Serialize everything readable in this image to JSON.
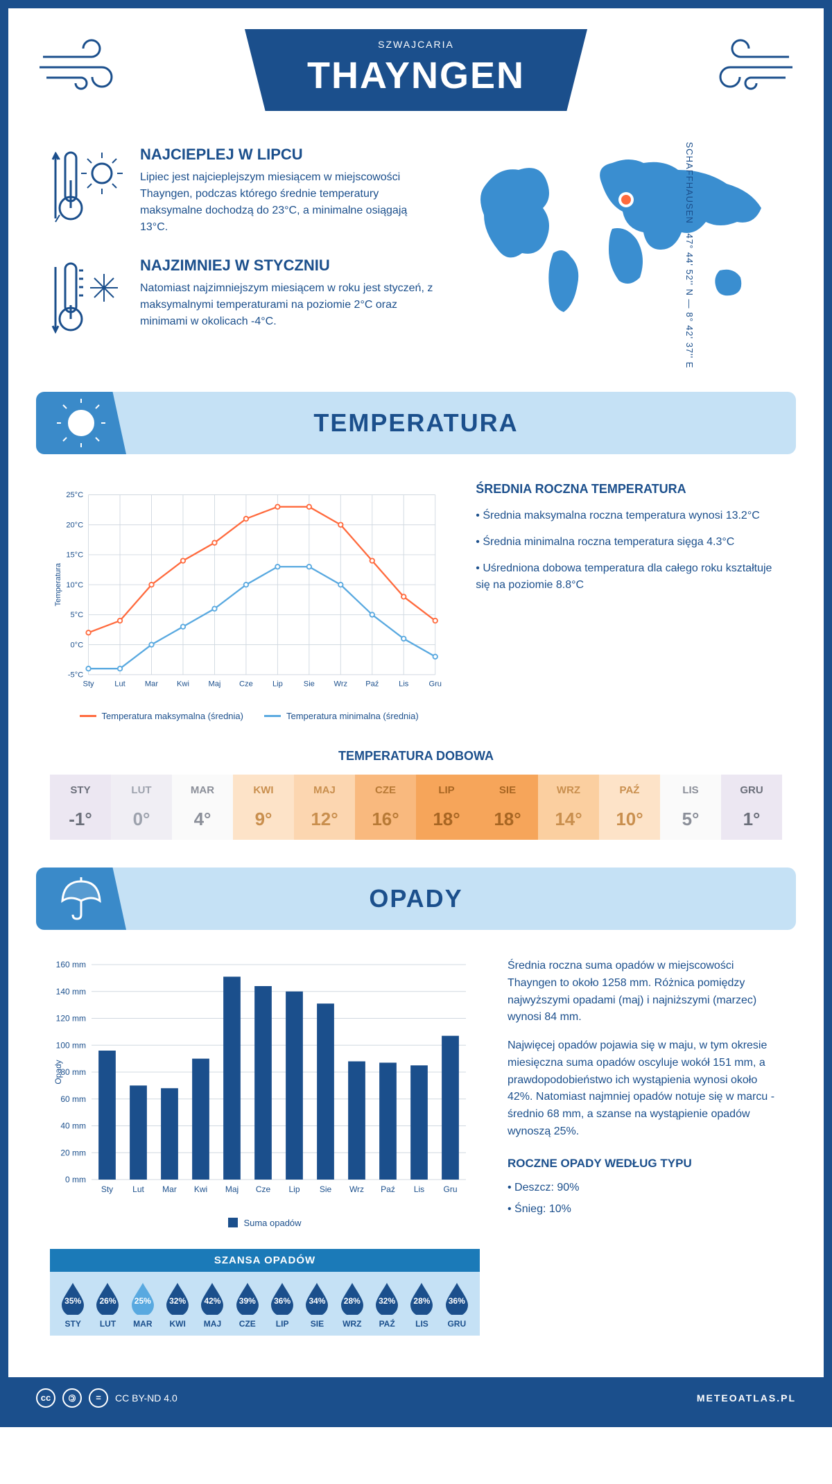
{
  "header": {
    "title": "THAYNGEN",
    "subtitle": "SZWAJCARIA"
  },
  "coords": {
    "line1": "SCHAFFHAUSEN",
    "line2": "47° 44' 52'' N — 8° 42' 37'' E"
  },
  "intro": {
    "hot": {
      "title": "NAJCIEPLEJ W LIPCU",
      "text": "Lipiec jest najcieplejszym miesiącem w miejscowości Thayngen, podczas którego średnie temperatury maksymalne dochodzą do 23°C, a minimalne osiągają 13°C."
    },
    "cold": {
      "title": "NAJZIMNIEJ W STYCZNIU",
      "text": "Natomiast najzimniejszym miesiącem w roku jest styczeń, z maksymalnymi temperaturami na poziomie 2°C oraz minimami w okolicach -4°C."
    }
  },
  "map": {
    "marker_color": "#ff6a3d",
    "land_color": "#3a8ed0"
  },
  "temperature": {
    "section_title": "TEMPERATURA",
    "months": [
      "Sty",
      "Lut",
      "Mar",
      "Kwi",
      "Maj",
      "Cze",
      "Lip",
      "Sie",
      "Wrz",
      "Paź",
      "Lis",
      "Gru"
    ],
    "max_series": [
      2,
      4,
      10,
      14,
      17,
      21,
      23,
      23,
      20,
      14,
      8,
      4
    ],
    "min_series": [
      -4,
      -4,
      0,
      3,
      6,
      10,
      13,
      13,
      10,
      5,
      1,
      -2
    ],
    "max_color": "#ff6a3d",
    "min_color": "#59a9e0",
    "ylabel": "Temperatura",
    "ylim": [
      -5,
      25
    ],
    "ytick_step": 5,
    "ytick_suffix": "°C",
    "grid_color": "#d0d8e0",
    "legend_max": "Temperatura maksymalna (średnia)",
    "legend_min": "Temperatura minimalna (średnia)",
    "info_title": "ŚREDNIA ROCZNA TEMPERATURA",
    "info_items": [
      "• Średnia maksymalna roczna temperatura wynosi 13.2°C",
      "• Średnia minimalna roczna temperatura sięga 4.3°C",
      "• Uśredniona dobowa temperatura dla całego roku kształtuje się na poziomie 8.8°C"
    ],
    "daily_title": "TEMPERATURA DOBOWA",
    "daily_months": [
      "STY",
      "LUT",
      "MAR",
      "KWI",
      "MAJ",
      "CZE",
      "LIP",
      "SIE",
      "WRZ",
      "PAŹ",
      "LIS",
      "GRU"
    ],
    "daily_values": [
      "-1°",
      "0°",
      "4°",
      "9°",
      "12°",
      "16°",
      "18°",
      "18°",
      "14°",
      "10°",
      "5°",
      "1°"
    ],
    "daily_bg": [
      "#ece7f2",
      "#f0eef4",
      "#fafafa",
      "#fde3c8",
      "#fcd6b0",
      "#f9b97e",
      "#f6a55a",
      "#f6a55a",
      "#fbcfa0",
      "#fde3c8",
      "#fafafa",
      "#ece7f2"
    ],
    "daily_text": [
      "#6b6f7a",
      "#9da2ad",
      "#8b8f99",
      "#c98f4e",
      "#c98f4e",
      "#b87a36",
      "#a86623",
      "#a86623",
      "#c98f4e",
      "#c98f4e",
      "#8b8f99",
      "#6b6f7a"
    ]
  },
  "precip": {
    "section_title": "OPADY",
    "months": [
      "Sty",
      "Lut",
      "Mar",
      "Kwi",
      "Maj",
      "Cze",
      "Lip",
      "Sie",
      "Wrz",
      "Paź",
      "Lis",
      "Gru"
    ],
    "values": [
      96,
      70,
      68,
      90,
      151,
      144,
      140,
      131,
      88,
      87,
      85,
      107
    ],
    "bar_color": "#1b4f8c",
    "ylabel": "Opady",
    "ylim": [
      0,
      160
    ],
    "ytick_step": 20,
    "ytick_suffix": " mm",
    "grid_color": "#d0d8e0",
    "legend": "Suma opadów",
    "text1": "Średnia roczna suma opadów w miejscowości Thayngen to około 1258 mm. Różnica pomiędzy najwyższymi opadami (maj) i najniższymi (marzec) wynosi 84 mm.",
    "text2": "Najwięcej opadów pojawia się w maju, w tym okresie miesięczna suma opadów oscyluje wokół 151 mm, a prawdopodobieństwo ich wystąpienia wynosi około 42%. Natomiast najmniej opadów notuje się w marcu - średnio 68 mm, a szanse na wystąpienie opadów wynoszą 25%.",
    "chance_title": "SZANSA OPADÓW",
    "chance_months": [
      "STY",
      "LUT",
      "MAR",
      "KWI",
      "MAJ",
      "CZE",
      "LIP",
      "SIE",
      "WRZ",
      "PAŹ",
      "LIS",
      "GRU"
    ],
    "chance_values": [
      "35%",
      "26%",
      "25%",
      "32%",
      "42%",
      "39%",
      "36%",
      "34%",
      "28%",
      "32%",
      "28%",
      "36%"
    ],
    "chance_min_idx": 2,
    "drop_dark": "#1b4f8c",
    "drop_light": "#59a9e0",
    "type_title": "ROCZNE OPADY WEDŁUG TYPU",
    "type_items": [
      "• Deszcz: 90%",
      "• Śnieg: 10%"
    ]
  },
  "footer": {
    "license": "CC BY-ND 4.0",
    "brand": "METEOATLAS.PL"
  },
  "colors": {
    "primary": "#1b4f8c",
    "section_bg": "#c5e1f5",
    "section_corner": "#3a8ac9"
  }
}
